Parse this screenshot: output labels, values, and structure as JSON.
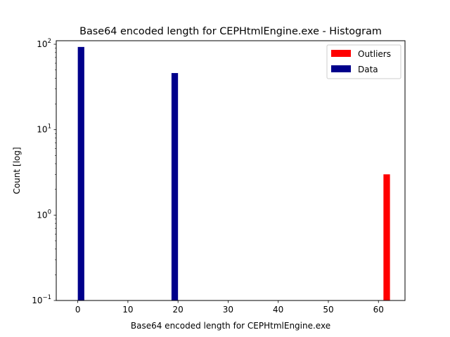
{
  "chart_data": {
    "type": "bar",
    "title": "Base64 encoded length for CEPHtmlEngine.exe - Histogram",
    "xlabel": "Base64 encoded length for CEPHtmlEngine.exe",
    "ylabel": "Count [log]",
    "yscale": "log",
    "xlim": [
      -4.3,
      65.3
    ],
    "ylim": [
      0.1,
      110
    ],
    "grid": false,
    "legend_position": "top-right",
    "x_ticks": [
      0,
      10,
      20,
      30,
      40,
      50,
      60
    ],
    "x_tick_labels": [
      "0",
      "10",
      "20",
      "30",
      "40",
      "50",
      "60"
    ],
    "y_ticks": [
      0.1,
      1,
      10,
      100
    ],
    "y_tick_labels": [
      {
        "base": "10",
        "exp": "−1"
      },
      {
        "base": "10",
        "exp": "0"
      },
      {
        "base": "10",
        "exp": "1"
      },
      {
        "base": "10",
        "exp": "2"
      }
    ],
    "series": [
      {
        "name": "Outliers",
        "color": "#ff0000",
        "bars": [
          {
            "x0": 61.0,
            "x1": 62.3,
            "value": 3
          }
        ]
      },
      {
        "name": "Data",
        "color": "#00008b",
        "bars": [
          {
            "x0": 0.0,
            "x1": 1.3,
            "value": 93
          },
          {
            "x0": 18.7,
            "x1": 20.0,
            "value": 46
          }
        ]
      }
    ]
  }
}
